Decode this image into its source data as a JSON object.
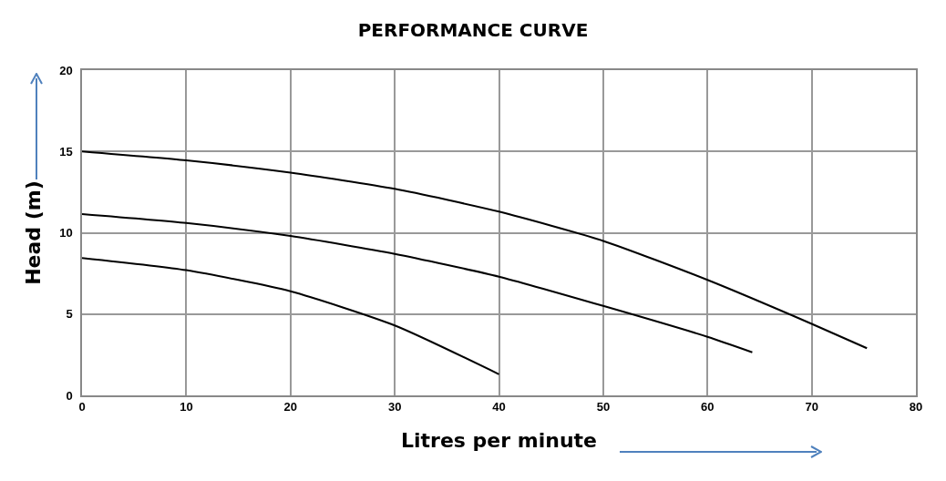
{
  "chart_data": {
    "type": "line",
    "title": "PERFORMANCE CURVE",
    "xlabel": "Litres per minute",
    "ylabel": "Head (m)",
    "xlim": [
      0,
      80
    ],
    "xticks": [
      0,
      10,
      20,
      30,
      40,
      50,
      60,
      70,
      80
    ],
    "ylim": [
      0,
      20
    ],
    "yticks": [
      0,
      5,
      10,
      15,
      20
    ],
    "grid": true,
    "marker": "none",
    "line_style": "solid",
    "series": [
      {
        "color": "#000000",
        "x": [
          0,
          10,
          20,
          30,
          40,
          50,
          60,
          70,
          75.3
        ],
        "values": [
          15,
          14.45,
          13.7,
          12.7,
          11.3,
          9.5,
          7.1,
          4.4,
          2.9
        ]
      },
      {
        "color": "#000000",
        "x": [
          0,
          10,
          20,
          30,
          40,
          50,
          60,
          64.3
        ],
        "values": [
          11.15,
          10.6,
          9.8,
          8.7,
          7.3,
          5.5,
          3.6,
          2.65
        ]
      },
      {
        "color": "#000000",
        "x": [
          0,
          10,
          20,
          30,
          40
        ],
        "values": [
          8.45,
          7.7,
          6.4,
          4.3,
          1.3
        ]
      }
    ]
  }
}
